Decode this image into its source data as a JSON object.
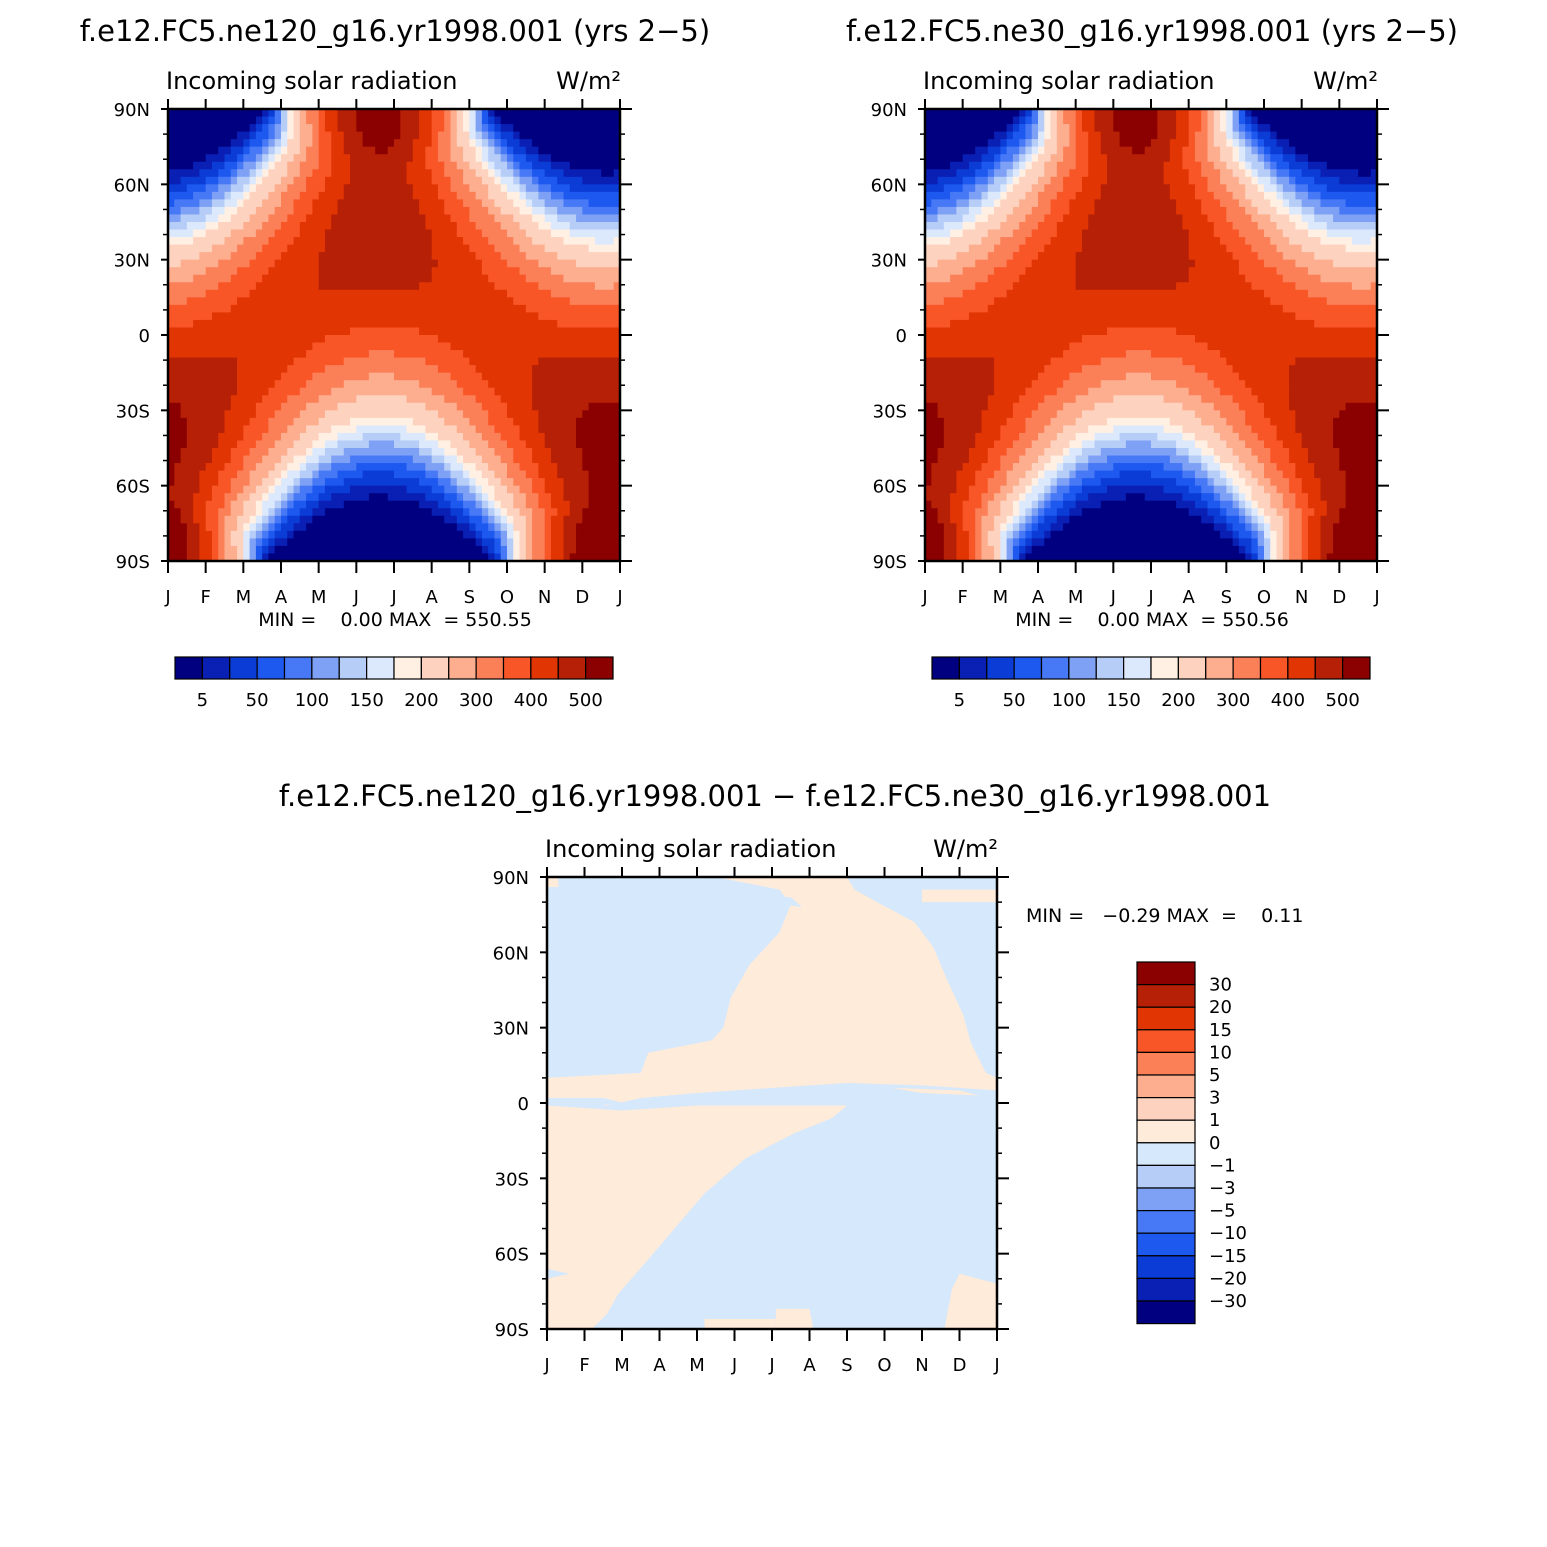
{
  "palette": [
    "#000080",
    "#0a1fb3",
    "#0b3cd6",
    "#1d58ef",
    "#4778f5",
    "#7ea1f5",
    "#b6cdf8",
    "#dce8fb",
    "#fff0e3",
    "#fdd2bf",
    "#fcae8e",
    "#fb8058",
    "#f95628",
    "#e23504",
    "#b52006",
    "#8b0000"
  ],
  "diff_palette": [
    "#000080",
    "#0a1fb3",
    "#0b3cd6",
    "#1d58ef",
    "#4778f5",
    "#7ea1f5",
    "#b6cdf8",
    "#d6e8fb",
    "#ffebd9",
    "#fdd2bf",
    "#fcae8e",
    "#fb8058",
    "#f95628",
    "#e23504",
    "#b52006",
    "#8b0000"
  ],
  "panels": [
    {
      "title": "f.e12.FC5.ne120_g16.yr1998.001 (yrs 2−5)",
      "variable": "Incoming solar radiation",
      "units": "W/m²",
      "stats": "MIN =    0.00 MAX  = 550.55",
      "colorbar_labels": [
        "5",
        "50",
        "100",
        "150",
        "200",
        "300",
        "400",
        "500"
      ]
    },
    {
      "title": "f.e12.FC5.ne30_g16.yr1998.001 (yrs 2−5)",
      "variable": "Incoming solar radiation",
      "units": "W/m²",
      "stats": "MIN =    0.00 MAX  = 550.56",
      "colorbar_labels": [
        "5",
        "50",
        "100",
        "150",
        "200",
        "300",
        "400",
        "500"
      ]
    },
    {
      "title": "f.e12.FC5.ne120_g16.yr1998.001 − f.e12.FC5.ne30_g16.yr1998.001",
      "variable": "Incoming solar radiation",
      "units": "W/m²",
      "stats": "MIN =   −0.29 MAX  =    0.11",
      "colorbar_labels": [
        "30",
        "20",
        "15",
        "10",
        "5",
        "3",
        "1",
        "0",
        "−1",
        "−3",
        "−5",
        "−10",
        "−15",
        "−20",
        "−30"
      ]
    }
  ],
  "chart_data": [
    {
      "type": "heatmap",
      "title": "f.e12.FC5.ne120_g16.yr1998.001 (yrs 2−5)",
      "subtitle": "Incoming solar radiation   W/m²",
      "x_tick_labels": [
        "J",
        "F",
        "M",
        "A",
        "M",
        "J",
        "J",
        "A",
        "S",
        "O",
        "N",
        "D",
        "J"
      ],
      "y_tick_labels": [
        "90N",
        "60N",
        "30N",
        "0",
        "30S",
        "60S",
        "90S"
      ],
      "y_range": [
        -90,
        90
      ],
      "x_range_months": [
        0,
        12
      ],
      "field": "seasonal insolation (latitude vs month)",
      "min": 0.0,
      "max": 550.55,
      "contour_levels": [
        5,
        25,
        50,
        75,
        100,
        125,
        150,
        175,
        200,
        250,
        300,
        350,
        400,
        450,
        500
      ]
    },
    {
      "type": "heatmap",
      "title": "f.e12.FC5.ne30_g16.yr1998.001 (yrs 2−5)",
      "subtitle": "Incoming solar radiation   W/m²",
      "x_tick_labels": [
        "J",
        "F",
        "M",
        "A",
        "M",
        "J",
        "J",
        "A",
        "S",
        "O",
        "N",
        "D",
        "J"
      ],
      "y_tick_labels": [
        "90N",
        "60N",
        "30N",
        "0",
        "30S",
        "60S",
        "90S"
      ],
      "y_range": [
        -90,
        90
      ],
      "x_range_months": [
        0,
        12
      ],
      "field": "seasonal insolation (latitude vs month)",
      "min": 0.0,
      "max": 550.56,
      "contour_levels": [
        5,
        25,
        50,
        75,
        100,
        125,
        150,
        175,
        200,
        250,
        300,
        350,
        400,
        450,
        500
      ]
    },
    {
      "type": "heatmap",
      "title": "f.e12.FC5.ne120_g16.yr1998.001 − f.e12.FC5.ne30_g16.yr1998.001",
      "subtitle": "Incoming solar radiation   W/m²",
      "x_tick_labels": [
        "J",
        "F",
        "M",
        "A",
        "M",
        "J",
        "J",
        "A",
        "S",
        "O",
        "N",
        "D",
        "J"
      ],
      "y_tick_labels": [
        "90N",
        "60N",
        "30N",
        "0",
        "30S",
        "60S",
        "90S"
      ],
      "y_range": [
        -90,
        90
      ],
      "x_range_months": [
        0,
        12
      ],
      "min": -0.29,
      "max": 0.11,
      "contour_levels": [
        -30,
        -20,
        -15,
        -10,
        -5,
        -3,
        -1,
        0,
        1,
        3,
        5,
        10,
        15,
        20,
        30
      ],
      "regions": [
        {
          "sign": "negative",
          "color": "#d6e8fb",
          "description": "broad band below 0 (light blue)"
        },
        {
          "sign": "positive",
          "color": "#ffebd9",
          "description": "broad band 0 to 1 (light peach)"
        }
      ]
    }
  ]
}
